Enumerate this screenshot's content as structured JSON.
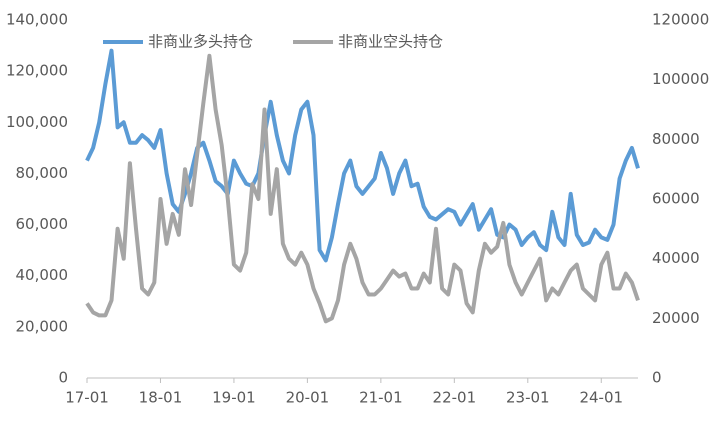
{
  "chart_data": {
    "type": "line",
    "categories": [
      "17-01",
      null,
      null,
      null,
      null,
      null,
      null,
      null,
      null,
      null,
      null,
      null,
      "18-01",
      null,
      null,
      null,
      null,
      null,
      null,
      null,
      null,
      null,
      null,
      null,
      "19-01",
      null,
      null,
      null,
      null,
      null,
      null,
      null,
      null,
      null,
      null,
      null,
      "20-01",
      null,
      null,
      null,
      null,
      null,
      null,
      null,
      null,
      null,
      null,
      null,
      "21-01",
      null,
      null,
      null,
      null,
      null,
      null,
      null,
      null,
      null,
      null,
      null,
      "22-01",
      null,
      null,
      null,
      null,
      null,
      null,
      null,
      null,
      null,
      null,
      null,
      "23-01",
      null,
      null,
      null,
      null,
      null,
      null,
      null,
      null,
      null,
      null,
      null,
      "24-01",
      null,
      null,
      null,
      null,
      null,
      null
    ],
    "series": [
      {
        "name": "非商业多头持仓",
        "color": "#5b9bd5",
        "values": [
          85000,
          90000,
          100000,
          115000,
          128000,
          98000,
          100000,
          92000,
          92000,
          95000,
          93000,
          90000,
          97000,
          80000,
          68000,
          65000,
          72000,
          80000,
          90000,
          92000,
          85000,
          77000,
          75000,
          72000,
          85000,
          80000,
          76000,
          75000,
          80000,
          95000,
          108000,
          95000,
          85000,
          80000,
          95000,
          105000,
          108000,
          95000,
          50000,
          46000,
          55000,
          68000,
          80000,
          85000,
          75000,
          72000,
          75000,
          78000,
          88000,
          82000,
          72000,
          80000,
          85000,
          75000,
          76000,
          67000,
          63000,
          62000,
          64000,
          66000,
          65000,
          60000,
          64000,
          68000,
          58000,
          62000,
          66000,
          56000,
          55000,
          60000,
          58000,
          52000,
          55000,
          57000,
          52000,
          50000,
          65000,
          55000,
          52000,
          72000,
          56000,
          52000,
          53000,
          58000,
          55000,
          54000,
          60000,
          78000,
          85000,
          90000,
          82000
        ]
      },
      {
        "name": "非商业空头持仓",
        "color": "#a5a5a5",
        "axis": "y2",
        "values": [
          25000,
          22000,
          21000,
          21000,
          26000,
          50000,
          40000,
          72000,
          50000,
          30000,
          28000,
          32000,
          60000,
          45000,
          55000,
          48000,
          70000,
          58000,
          75000,
          92000,
          108000,
          90000,
          78000,
          60000,
          38000,
          36000,
          42000,
          65000,
          60000,
          90000,
          55000,
          70000,
          45000,
          40000,
          38000,
          42000,
          38000,
          30000,
          25000,
          19000,
          20000,
          26000,
          38000,
          45000,
          40000,
          32000,
          28000,
          28000,
          30000,
          33000,
          36000,
          34000,
          35000,
          30000,
          30000,
          35000,
          32000,
          50000,
          30000,
          28000,
          38000,
          36000,
          25000,
          22000,
          36000,
          45000,
          42000,
          44000,
          52000,
          38000,
          32000,
          28000,
          32000,
          36000,
          40000,
          26000,
          30000,
          28000,
          32000,
          36000,
          38000,
          30000,
          28000,
          26000,
          38000,
          42000,
          30000,
          30000,
          35000,
          32000,
          26000
        ]
      }
    ],
    "ylim": [
      0,
      140000
    ],
    "yticks": [
      0,
      {
        "value": 20000,
        "label": "20,000"
      },
      {
        "value": 40000,
        "label": "40,000"
      },
      {
        "value": 60000,
        "label": "60,000"
      },
      {
        "value": 80000,
        "label": "80,000"
      },
      {
        "value": 100000,
        "label": "100,000"
      },
      {
        "value": 120000,
        "label": "120,000"
      },
      {
        "value": 140000,
        "label": "140,000"
      }
    ],
    "y2lim": [
      0,
      120000
    ],
    "y2ticks": [
      0,
      20000,
      40000,
      60000,
      80000,
      100000,
      120000
    ],
    "grid": false,
    "legend": "top-left"
  }
}
